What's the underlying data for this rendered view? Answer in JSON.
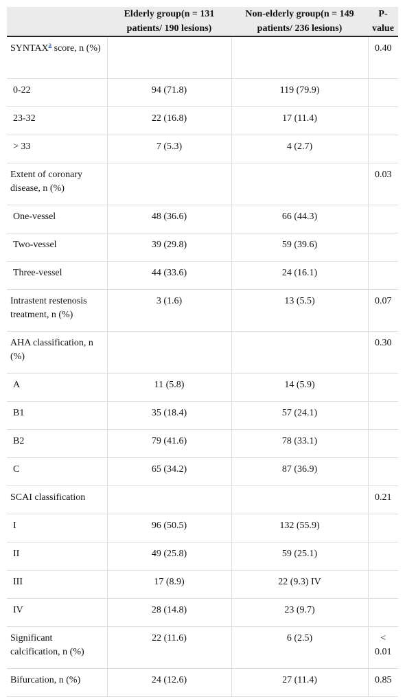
{
  "header": {
    "c1": "",
    "c2": "Elderly group(n = 131 patients/ 190 lesions)",
    "c3": "Non-elderly group(n = 149 patients/ 236 lesions)",
    "c4": "P-value"
  },
  "footnote_marker": "a",
  "rows": [
    {
      "label_pre": "SYNTAX",
      "label_post": " score, n (%)",
      "elderly": "",
      "nonelderly": "",
      "p": "0.40"
    },
    {
      "label": "0-22",
      "elderly": "94 (71.8)",
      "nonelderly": "119 (79.9)",
      "p": ""
    },
    {
      "label": "23-32",
      "elderly": "22 (16.8)",
      "nonelderly": "17 (11.4)",
      "p": ""
    },
    {
      "label": "> 33",
      "elderly": "7 (5.3)",
      "nonelderly": "4 (2.7)",
      "p": ""
    },
    {
      "label": "Extent of coronary disease, n (%)",
      "elderly": "",
      "nonelderly": "",
      "p": "0.03"
    },
    {
      "label": "One-vessel",
      "elderly": "48 (36.6)",
      "nonelderly": "66 (44.3)",
      "p": ""
    },
    {
      "label": "Two-vessel",
      "elderly": "39 (29.8)",
      "nonelderly": "59 (39.6)",
      "p": ""
    },
    {
      "label": "Three-vessel",
      "elderly": "44 (33.6)",
      "nonelderly": "24 (16.1)",
      "p": ""
    },
    {
      "label": "Intrastent restenosis treatment, n (%)",
      "elderly": "3 (1.6)",
      "nonelderly": "13 (5.5)",
      "p": "0.07"
    },
    {
      "label": "AHA classification, n (%)",
      "elderly": "",
      "nonelderly": "",
      "p": "0.30"
    },
    {
      "label": "A",
      "elderly": "11 (5.8)",
      "nonelderly": "14 (5.9)",
      "p": ""
    },
    {
      "label": "B1",
      "elderly": "35 (18.4)",
      "nonelderly": "57 (24.1)",
      "p": ""
    },
    {
      "label": "B2",
      "elderly": "79 (41.6)",
      "nonelderly": "78 (33.1)",
      "p": ""
    },
    {
      "label": "C",
      "elderly": "65 (34.2)",
      "nonelderly": "87 (36.9)",
      "p": ""
    },
    {
      "label": "SCAI classification",
      "elderly": "",
      "nonelderly": "",
      "p": "0.21"
    },
    {
      "label": "I",
      "elderly": "96 (50.5)",
      "nonelderly": "132 (55.9)",
      "p": ""
    },
    {
      "label": "II",
      "elderly": "49 (25.8)",
      "nonelderly": "59 (25.1)",
      "p": ""
    },
    {
      "label": "III",
      "elderly": "17 (8.9)",
      "nonelderly": "22 (9.3) IV",
      "p": ""
    },
    {
      "label": "IV",
      "elderly": "28 (14.8)",
      "nonelderly": "23 (9.7)",
      "p": ""
    },
    {
      "label": "Significant calcification, n (%)",
      "elderly": "22 (11.6)",
      "nonelderly": "6 (2.5)",
      "p": "< 0.01"
    },
    {
      "label": "Bifurcation, n (%)",
      "elderly": "24 (12.6)",
      "nonelderly": "27 (11.4)",
      "p": "0.85"
    }
  ]
}
